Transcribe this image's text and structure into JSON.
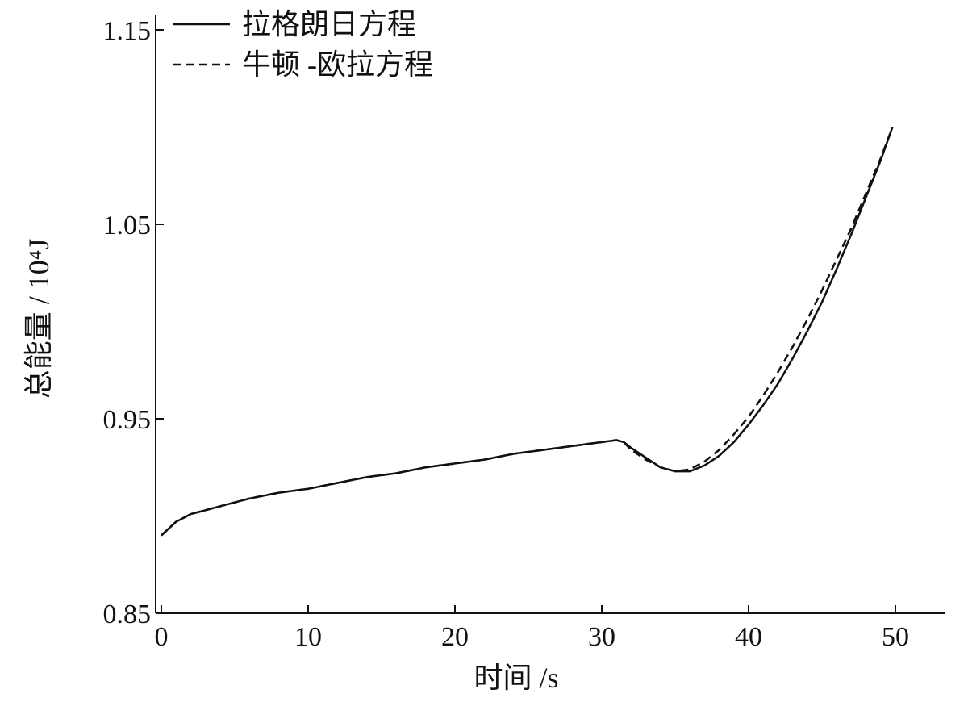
{
  "chart_data": {
    "type": "line",
    "xlabel": "时间 /s",
    "ylabel": "总能量 / 10⁴J",
    "xlim": [
      0,
      53
    ],
    "ylim": [
      0.85,
      1.16
    ],
    "xticks": [
      0,
      10,
      20,
      30,
      40,
      50
    ],
    "yticks": [
      0.85,
      0.95,
      1.05,
      1.15
    ],
    "xtick_labels": [
      "0",
      "10",
      "20",
      "30",
      "40",
      "50"
    ],
    "ytick_labels": [
      "0.85",
      "0.95",
      "1.05",
      "1.15"
    ],
    "grid": false,
    "legend_position": "top-left",
    "series": [
      {
        "name": "拉格朗日方程",
        "style": "solid",
        "color": "#111111",
        "x": [
          0,
          1,
          2,
          3,
          4,
          6,
          8,
          10,
          12,
          14,
          16,
          18,
          20,
          22,
          24,
          26,
          28,
          30,
          31,
          31.5,
          32,
          33,
          34,
          35,
          36,
          37,
          38,
          39,
          40,
          41,
          42,
          43,
          44,
          45,
          46,
          47,
          48,
          49,
          49.8
        ],
        "y": [
          0.89,
          0.897,
          0.901,
          0.903,
          0.905,
          0.909,
          0.912,
          0.914,
          0.917,
          0.92,
          0.922,
          0.925,
          0.927,
          0.929,
          0.932,
          0.934,
          0.936,
          0.938,
          0.939,
          0.938,
          0.935,
          0.93,
          0.925,
          0.923,
          0.923,
          0.926,
          0.931,
          0.938,
          0.947,
          0.957,
          0.968,
          0.981,
          0.995,
          1.01,
          1.027,
          1.045,
          1.064,
          1.083,
          1.1
        ]
      },
      {
        "name": "牛顿 -欧拉方程",
        "style": "dashed",
        "color": "#111111",
        "x": [
          0,
          1,
          2,
          3,
          4,
          6,
          8,
          10,
          12,
          14,
          16,
          18,
          20,
          22,
          24,
          26,
          28,
          30,
          31,
          31.5,
          32,
          33,
          34,
          35,
          36,
          37,
          38,
          39,
          40,
          41,
          42,
          43,
          44,
          45,
          46,
          47,
          48,
          49,
          49.8
        ],
        "y": [
          0.89,
          0.897,
          0.901,
          0.903,
          0.905,
          0.909,
          0.912,
          0.914,
          0.917,
          0.92,
          0.922,
          0.925,
          0.927,
          0.929,
          0.932,
          0.934,
          0.936,
          0.938,
          0.939,
          0.938,
          0.934,
          0.929,
          0.925,
          0.923,
          0.924,
          0.928,
          0.934,
          0.942,
          0.951,
          0.962,
          0.974,
          0.987,
          1.001,
          1.016,
          1.032,
          1.048,
          1.066,
          1.084,
          1.1
        ]
      }
    ]
  }
}
